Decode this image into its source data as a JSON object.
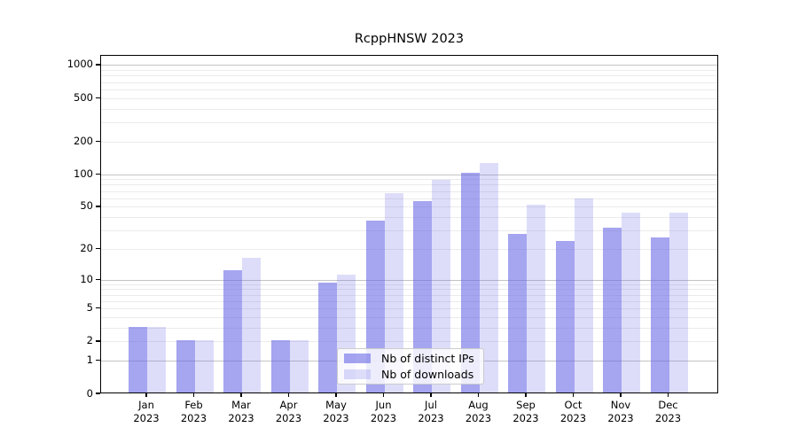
{
  "title": "RcppHNSW 2023",
  "colors": {
    "bar_base_rgb": "100,100,230",
    "ips_alpha": 0.58,
    "downloads_alpha": 0.22,
    "grid_major": "#c4c4c4",
    "grid_minor": "#ebebeb",
    "axis": "#000000",
    "legend_border": "#cccccc"
  },
  "axis": {
    "yticks": [
      0,
      1,
      2,
      5,
      10,
      20,
      50,
      100,
      200,
      500,
      1000
    ],
    "ylim": [
      0,
      1000
    ],
    "yscale": "log1p"
  },
  "legend": {
    "items": [
      {
        "label": "Nb of distinct IPs",
        "alpha": 0.58
      },
      {
        "label": "Nb of downloads",
        "alpha": 0.22
      }
    ]
  },
  "chart_data": {
    "type": "bar",
    "title": "RcppHNSW 2023",
    "categories": [
      "Jan 2023",
      "Feb 2023",
      "Mar 2023",
      "Apr 2023",
      "May 2023",
      "Jun 2023",
      "Jul 2023",
      "Aug 2023",
      "Sep 2023",
      "Oct 2023",
      "Nov 2023",
      "Dec 2023"
    ],
    "series": [
      {
        "name": "Nb of distinct IPs",
        "values": [
          3,
          2,
          12,
          2,
          9,
          36,
          55,
          101,
          27,
          23,
          31,
          25
        ]
      },
      {
        "name": "Nb of downloads",
        "values": [
          3,
          2,
          16,
          2,
          11,
          65,
          87,
          123,
          51,
          58,
          43,
          43
        ]
      }
    ],
    "xlabel": "",
    "ylabel": "",
    "ylim": [
      0,
      1000
    ],
    "yscale": "log1p",
    "yticks": [
      0,
      1,
      2,
      5,
      10,
      20,
      50,
      100,
      200,
      500,
      1000
    ],
    "grid": true,
    "legend_position": "inside-bottom-center"
  }
}
